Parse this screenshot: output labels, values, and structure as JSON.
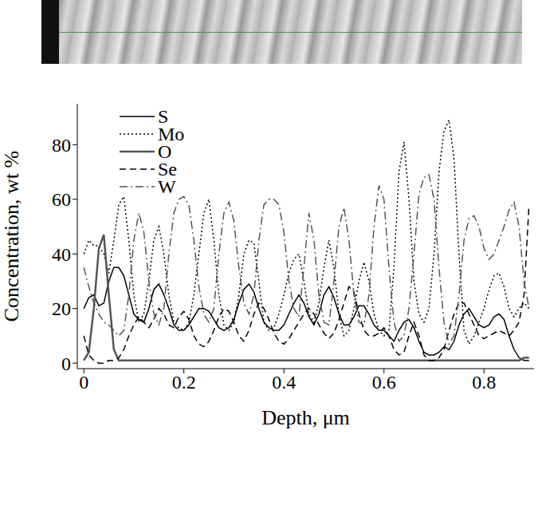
{
  "chart_data": {
    "type": "line",
    "xlabel": "Depth, μm",
    "ylabel": "Concentration, wt %",
    "xlim": [
      -0.013,
      0.9
    ],
    "xticks": [
      0,
      0.2,
      0.4,
      0.6,
      0.8
    ],
    "ylim": [
      -2,
      95
    ],
    "yticks": [
      0,
      20,
      40,
      60,
      80
    ],
    "grid": false,
    "legend": "upper left",
    "x": [
      0,
      0.01,
      0.02,
      0.03,
      0.04,
      0.05,
      0.06,
      0.07,
      0.08,
      0.09,
      0.1,
      0.11,
      0.12,
      0.13,
      0.14,
      0.15,
      0.16,
      0.17,
      0.18,
      0.19,
      0.2,
      0.21,
      0.22,
      0.23,
      0.24,
      0.25,
      0.26,
      0.27,
      0.28,
      0.29,
      0.3,
      0.31,
      0.32,
      0.33,
      0.34,
      0.35,
      0.36,
      0.37,
      0.38,
      0.39,
      0.4,
      0.41,
      0.42,
      0.43,
      0.44,
      0.45,
      0.46,
      0.47,
      0.48,
      0.49,
      0.5,
      0.51,
      0.52,
      0.53,
      0.54,
      0.55,
      0.56,
      0.57,
      0.58,
      0.59,
      0.6,
      0.61,
      0.62,
      0.63,
      0.64,
      0.65,
      0.66,
      0.67,
      0.68,
      0.69,
      0.7,
      0.71,
      0.72,
      0.73,
      0.74,
      0.75,
      0.76,
      0.77,
      0.78,
      0.79,
      0.8,
      0.81,
      0.82,
      0.83,
      0.84,
      0.85,
      0.86,
      0.87,
      0.88,
      0.89
    ],
    "series": [
      {
        "name": "S",
        "color": "#000000",
        "line_style": "solid",
        "values": [
          20,
          24,
          25,
          21,
          22,
          30,
          35,
          35,
          32,
          25,
          18,
          16,
          15,
          20,
          27,
          29,
          25,
          20,
          14,
          12,
          12,
          14,
          17,
          20,
          20,
          19,
          16,
          13,
          12,
          13,
          16,
          22,
          27,
          29,
          26,
          20,
          15,
          13,
          12,
          12,
          14,
          18,
          22,
          25,
          22,
          17,
          14,
          18,
          25,
          28,
          24,
          18,
          14,
          14,
          17,
          21,
          21,
          18,
          14,
          12,
          12,
          10,
          8,
          12,
          15,
          16,
          13,
          8,
          4,
          3,
          3,
          4,
          6,
          5,
          8,
          14,
          18,
          20,
          17,
          14,
          13,
          14,
          17,
          18,
          16,
          10,
          5,
          2,
          1,
          1
        ]
      },
      {
        "name": "Mo",
        "color": "#000000",
        "line_style": "dotted",
        "values": [
          40,
          45,
          43,
          43,
          40,
          33,
          45,
          58,
          61,
          45,
          25,
          15,
          18,
          30,
          45,
          50,
          40,
          25,
          15,
          13,
          12,
          15,
          25,
          40,
          55,
          60,
          45,
          25,
          14,
          12,
          15,
          25,
          40,
          45,
          44,
          30,
          15,
          12,
          13,
          18,
          25,
          33,
          38,
          40,
          30,
          18,
          15,
          22,
          35,
          45,
          35,
          18,
          10,
          12,
          20,
          30,
          37,
          30,
          18,
          12,
          10,
          12,
          35,
          70,
          81,
          60,
          30,
          18,
          15,
          20,
          40,
          70,
          85,
          89,
          75,
          40,
          12,
          7,
          10,
          15,
          20,
          27,
          32,
          33,
          28,
          20,
          17,
          20,
          22,
          20
        ]
      },
      {
        "name": "O",
        "color": "#555555",
        "line_style": "solid",
        "values": [
          1,
          4,
          20,
          42,
          47,
          25,
          5,
          1,
          1,
          1,
          1,
          1,
          1,
          1,
          1,
          1,
          1,
          1,
          1,
          1,
          1,
          1,
          1,
          1,
          1,
          1,
          1,
          1,
          1,
          1,
          1,
          1,
          1,
          1,
          1,
          1,
          1,
          1,
          1,
          1,
          1,
          1,
          1,
          1,
          1,
          1,
          1,
          1,
          1,
          1,
          1,
          1,
          1,
          1,
          1,
          1,
          1,
          1,
          1,
          1,
          1,
          1,
          1,
          1,
          1,
          1,
          1,
          1,
          1,
          1,
          1,
          1,
          1,
          1,
          1,
          1,
          1,
          1,
          1,
          1,
          1,
          1,
          1,
          1,
          1,
          1,
          1,
          1,
          2,
          2
        ]
      },
      {
        "name": "Se",
        "color": "#000000",
        "line_style": "dashed",
        "values": [
          10,
          3,
          1,
          0,
          0,
          1,
          1,
          2,
          5,
          10,
          14,
          17,
          15,
          13,
          16,
          20,
          18,
          14,
          13,
          17,
          19,
          16,
          10,
          7,
          6,
          8,
          12,
          17,
          20,
          19,
          15,
          10,
          8,
          12,
          18,
          22,
          20,
          16,
          11,
          8,
          7,
          9,
          12,
          15,
          18,
          20,
          18,
          14,
          11,
          9,
          11,
          16,
          22,
          28,
          26,
          18,
          12,
          10,
          10,
          11,
          13,
          10,
          5,
          3,
          4,
          10,
          15,
          10,
          3,
          1,
          1,
          2,
          5,
          12,
          18,
          22,
          22,
          18,
          14,
          10,
          9,
          10,
          11,
          12,
          11,
          10,
          12,
          15,
          25,
          58
        ]
      },
      {
        "name": "W",
        "color": "#555555",
        "line_style": "dashdot",
        "values": [
          35,
          28,
          22,
          18,
          15,
          14,
          12,
          10,
          12,
          25,
          45,
          55,
          48,
          30,
          18,
          14,
          20,
          40,
          55,
          60,
          61,
          58,
          45,
          28,
          18,
          15,
          20,
          40,
          55,
          59,
          52,
          35,
          22,
          18,
          25,
          45,
          58,
          60,
          60,
          58,
          48,
          30,
          20,
          17,
          35,
          55,
          45,
          25,
          15,
          14,
          30,
          50,
          57,
          45,
          25,
          15,
          14,
          25,
          50,
          65,
          60,
          35,
          15,
          8,
          10,
          20,
          40,
          62,
          68,
          69,
          60,
          35,
          15,
          7,
          10,
          25,
          45,
          53,
          54,
          50,
          42,
          38,
          40,
          45,
          50,
          56,
          59,
          50,
          30,
          20
        ]
      }
    ]
  }
}
